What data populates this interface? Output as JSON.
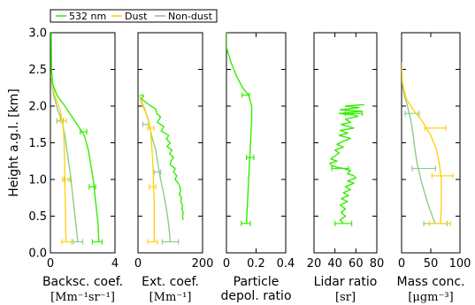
{
  "colors": {
    "nm532": "#33ee00",
    "dust": "#ffd11a",
    "nondust": "#8fcc88"
  },
  "y_axis": {
    "label": "Height a.g.l. [km]",
    "range": [
      0,
      3
    ],
    "ticks": [
      "0.0",
      "0.5",
      "1.0",
      "1.5",
      "2.0",
      "2.5",
      "3.0"
    ]
  },
  "legend": {
    "placement": "top-left",
    "items": [
      {
        "label": "532 nm",
        "key": "nm532"
      },
      {
        "label": "Dust",
        "key": "dust"
      },
      {
        "label": "Non-dust",
        "key": "nondust"
      }
    ]
  },
  "chart_data": [
    {
      "type": "line",
      "xlabel": "Backsc. coef.",
      "xunit": "[Mm⁻¹sr⁻¹]",
      "xlim": [
        0,
        4
      ],
      "xticks": [
        "0",
        "4"
      ],
      "ylim": [
        0,
        3
      ],
      "series": [
        {
          "name": "532 nm",
          "key": "nm532",
          "points": [
            [
              0.05,
              3.0
            ],
            [
              0.06,
              2.5
            ],
            [
              0.15,
              2.3
            ],
            [
              0.4,
              2.15
            ],
            [
              0.9,
              2.0
            ],
            [
              1.5,
              1.8
            ],
            [
              2.1,
              1.6
            ],
            [
              2.35,
              1.4
            ],
            [
              2.5,
              1.2
            ],
            [
              2.65,
              1.0
            ],
            [
              2.75,
              0.8
            ],
            [
              2.85,
              0.6
            ],
            [
              2.95,
              0.4
            ],
            [
              3.0,
              0.15
            ]
          ],
          "errorbars": [
            {
              "y": 1.65,
              "x": 2.05,
              "err": 0.2
            },
            {
              "y": 0.9,
              "x": 2.6,
              "err": 0.2
            },
            {
              "y": 0.15,
              "x": 2.9,
              "err": 0.3
            }
          ]
        },
        {
          "name": "Dust",
          "key": "dust",
          "points": [
            [
              0.05,
              2.4
            ],
            [
              0.25,
              2.15
            ],
            [
              0.6,
              1.95
            ],
            [
              0.8,
              1.7
            ],
            [
              0.85,
              1.5
            ],
            [
              0.88,
              1.2
            ],
            [
              0.9,
              0.9
            ],
            [
              0.93,
              0.6
            ],
            [
              0.95,
              0.3
            ],
            [
              0.97,
              0.15
            ]
          ],
          "errorbars": [
            {
              "y": 1.8,
              "x": 0.8,
              "err": 0.2
            },
            {
              "y": 1.0,
              "x": 0.95,
              "err": 0.2
            },
            {
              "y": 0.15,
              "x": 1.0,
              "err": 0.3
            }
          ]
        },
        {
          "name": "Non-dust",
          "key": "nondust",
          "points": [
            [
              0.05,
              2.4
            ],
            [
              0.2,
              2.15
            ],
            [
              0.45,
              1.95
            ],
            [
              0.7,
              1.8
            ],
            [
              0.9,
              1.6
            ],
            [
              1.05,
              1.35
            ],
            [
              1.25,
              1.05
            ],
            [
              1.4,
              0.75
            ],
            [
              1.55,
              0.45
            ],
            [
              1.7,
              0.15
            ]
          ],
          "errorbars": [
            {
              "y": 1.8,
              "x": 0.6,
              "err": 0.2
            },
            {
              "y": 1.0,
              "x": 1.05,
              "err": 0.2
            },
            {
              "y": 0.15,
              "x": 1.7,
              "err": 0.3
            }
          ]
        }
      ]
    },
    {
      "type": "line",
      "xlabel": "Ext. coef.",
      "xunit": "[Mm⁻¹]",
      "xlim": [
        0,
        200
      ],
      "xticks": [
        "0",
        "200"
      ],
      "ylim": [
        0,
        3
      ],
      "series": [
        {
          "name": "532 nm",
          "key": "nm532",
          "points": [
            [
              8,
              2.16
            ],
            [
              18,
              2.14
            ],
            [
              10,
              2.1
            ],
            [
              25,
              2.05
            ],
            [
              40,
              2.0
            ],
            [
              55,
              1.96
            ],
            [
              58,
              1.9
            ],
            [
              70,
              1.85
            ],
            [
              60,
              1.78
            ],
            [
              80,
              1.72
            ],
            [
              72,
              1.66
            ],
            [
              95,
              1.6
            ],
            [
              88,
              1.55
            ],
            [
              100,
              1.5
            ],
            [
              90,
              1.45
            ],
            [
              105,
              1.4
            ],
            [
              98,
              1.35
            ],
            [
              110,
              1.3
            ],
            [
              102,
              1.25
            ],
            [
              100,
              1.2
            ],
            [
              115,
              1.15
            ],
            [
              110,
              1.1
            ],
            [
              120,
              1.05
            ],
            [
              115,
              1.0
            ],
            [
              125,
              0.95
            ],
            [
              130,
              0.9
            ],
            [
              132,
              0.85
            ],
            [
              128,
              0.8
            ],
            [
              135,
              0.75
            ],
            [
              132,
              0.7
            ],
            [
              138,
              0.65
            ],
            [
              136,
              0.6
            ],
            [
              140,
              0.55
            ],
            [
              138,
              0.5
            ],
            [
              140,
              0.45
            ]
          ],
          "errorbars": []
        },
        {
          "name": "Dust",
          "key": "dust",
          "points": [
            [
              5,
              2.15
            ],
            [
              10,
              2.05
            ],
            [
              20,
              1.95
            ],
            [
              30,
              1.85
            ],
            [
              38,
              1.7
            ],
            [
              42,
              1.5
            ],
            [
              45,
              1.3
            ],
            [
              47,
              1.1
            ],
            [
              48,
              0.9
            ],
            [
              50,
              0.7
            ],
            [
              50,
              0.5
            ],
            [
              50,
              0.3
            ],
            [
              50,
              0.15
            ]
          ],
          "errorbars": [
            {
              "y": 1.7,
              "x": 40,
              "err": 10
            },
            {
              "y": 0.9,
              "x": 45,
              "err": 10
            },
            {
              "y": 0.15,
              "x": 45,
              "err": 15
            }
          ]
        },
        {
          "name": "Non-dust",
          "key": "nondust",
          "points": [
            [
              5,
              2.15
            ],
            [
              12,
              2.05
            ],
            [
              22,
              1.95
            ],
            [
              32,
              1.8
            ],
            [
              42,
              1.6
            ],
            [
              55,
              1.4
            ],
            [
              62,
              1.2
            ],
            [
              70,
              1.0
            ],
            [
              80,
              0.8
            ],
            [
              90,
              0.55
            ],
            [
              96,
              0.35
            ],
            [
              100,
              0.15
            ]
          ],
          "errorbars": [
            {
              "y": 1.75,
              "x": 25,
              "err": 10
            },
            {
              "y": 1.1,
              "x": 60,
              "err": 10
            },
            {
              "y": 0.15,
              "x": 100,
              "err": 25
            }
          ]
        }
      ]
    },
    {
      "type": "line",
      "xlabel": "Particle",
      "xlabel2": "depol. ratio",
      "xlim": [
        0,
        0.4
      ],
      "xticks": [
        "0",
        "0.2",
        "0.4"
      ],
      "ylim": [
        0,
        3
      ],
      "series": [
        {
          "name": "532 nm",
          "key": "nm532",
          "points": [
            [
              0.0,
              3.0
            ],
            [
              0.0,
              2.8
            ],
            [
              0.03,
              2.6
            ],
            [
              0.07,
              2.4
            ],
            [
              0.11,
              2.25
            ],
            [
              0.15,
              2.15
            ],
            [
              0.17,
              2.0
            ],
            [
              0.17,
              1.8
            ],
            [
              0.165,
              1.6
            ],
            [
              0.16,
              1.4
            ],
            [
              0.155,
              1.2
            ],
            [
              0.15,
              1.0
            ],
            [
              0.145,
              0.8
            ],
            [
              0.14,
              0.6
            ],
            [
              0.135,
              0.4
            ]
          ],
          "errorbars": [
            {
              "y": 2.15,
              "x": 0.13,
              "err": 0.025
            },
            {
              "y": 1.3,
              "x": 0.16,
              "err": 0.025
            },
            {
              "y": 0.4,
              "x": 0.13,
              "err": 0.03
            }
          ]
        }
      ]
    },
    {
      "type": "line",
      "xlabel": "Lidar ratio",
      "xunit": "[sr]",
      "xlim": [
        20,
        80
      ],
      "xticks": [
        "20",
        "40",
        "60",
        "80"
      ],
      "ylim": [
        0,
        3
      ],
      "series": [
        {
          "name": "532 nm",
          "key": "nm532",
          "points": [
            [
              68,
              2.02
            ],
            [
              50,
              2.0
            ],
            [
              63,
              1.98
            ],
            [
              45,
              1.95
            ],
            [
              66,
              1.93
            ],
            [
              44,
              1.9
            ],
            [
              58,
              1.88
            ],
            [
              62,
              1.86
            ],
            [
              50,
              1.82
            ],
            [
              55,
              1.78
            ],
            [
              46,
              1.75
            ],
            [
              58,
              1.7
            ],
            [
              45,
              1.67
            ],
            [
              52,
              1.63
            ],
            [
              44,
              1.6
            ],
            [
              55,
              1.56
            ],
            [
              48,
              1.52
            ],
            [
              42,
              1.48
            ],
            [
              48,
              1.44
            ],
            [
              40,
              1.4
            ],
            [
              44,
              1.36
            ],
            [
              40,
              1.32
            ],
            [
              36,
              1.28
            ],
            [
              42,
              1.25
            ],
            [
              35,
              1.22
            ],
            [
              38,
              1.18
            ],
            [
              48,
              1.15
            ],
            [
              55,
              1.12
            ],
            [
              52,
              1.08
            ],
            [
              58,
              1.05
            ],
            [
              60,
              1.02
            ],
            [
              52,
              0.98
            ],
            [
              58,
              0.95
            ],
            [
              50,
              0.9
            ],
            [
              55,
              0.86
            ],
            [
              48,
              0.82
            ],
            [
              53,
              0.78
            ],
            [
              46,
              0.74
            ],
            [
              52,
              0.7
            ],
            [
              45,
              0.65
            ],
            [
              50,
              0.6
            ],
            [
              46,
              0.55
            ],
            [
              50,
              0.5
            ],
            [
              45,
              0.45
            ],
            [
              48,
              0.4
            ]
          ],
          "errorbars": [
            {
              "y": 1.9,
              "x": 58,
              "err": 8
            },
            {
              "y": 1.15,
              "x": 45,
              "err": 8
            },
            {
              "y": 0.4,
              "x": 48,
              "err": 8
            }
          ]
        }
      ]
    },
    {
      "type": "line",
      "xlabel": "Mass conc.",
      "xunit": "[μgm⁻³]",
      "xlim": [
        0,
        100
      ],
      "xticks": [
        "0",
        "50",
        "100"
      ],
      "ylim": [
        0,
        3
      ],
      "series": [
        {
          "name": "Dust",
          "key": "dust",
          "points": [
            [
              0,
              2.6
            ],
            [
              2,
              2.3
            ],
            [
              8,
              2.1
            ],
            [
              20,
              1.95
            ],
            [
              35,
              1.8
            ],
            [
              50,
              1.6
            ],
            [
              60,
              1.4
            ],
            [
              65,
              1.2
            ],
            [
              68,
              1.0
            ],
            [
              68,
              0.8
            ],
            [
              68,
              0.6
            ],
            [
              67,
              0.45
            ],
            [
              66,
              0.4
            ]
          ],
          "errorbars": [
            {
              "y": 1.7,
              "x": 58,
              "err": 18
            },
            {
              "y": 1.05,
              "x": 70,
              "err": 18
            },
            {
              "y": 0.4,
              "x": 66,
              "err": 18
            }
          ]
        },
        {
          "name": "Non-dust",
          "key": "nondust",
          "points": [
            [
              0,
              2.4
            ],
            [
              3,
              2.2
            ],
            [
              10,
              2.0
            ],
            [
              16,
              1.8
            ],
            [
              20,
              1.6
            ],
            [
              23,
              1.4
            ],
            [
              27,
              1.2
            ],
            [
              33,
              1.0
            ],
            [
              40,
              0.8
            ],
            [
              48,
              0.6
            ],
            [
              55,
              0.45
            ],
            [
              58,
              0.4
            ]
          ],
          "errorbars": [
            {
              "y": 1.9,
              "x": 18,
              "err": 12
            },
            {
              "y": 1.15,
              "x": 38,
              "err": 20
            },
            {
              "y": 0.4,
              "x": 58,
              "err": 20
            }
          ]
        }
      ]
    }
  ]
}
